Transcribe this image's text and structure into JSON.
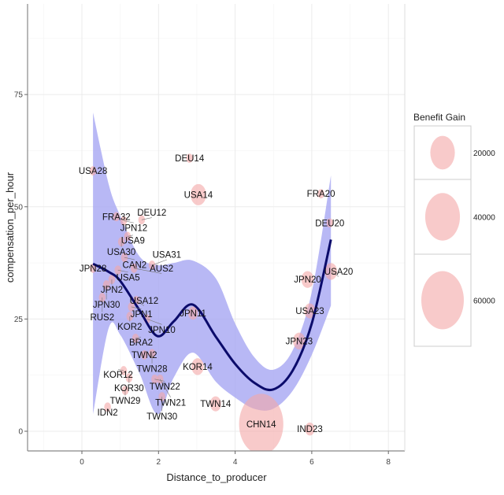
{
  "chart_data": {
    "type": "scatter",
    "xlabel": "Distance_to_producer",
    "ylabel": "compensation_per_hour",
    "xlim": [
      -1.4,
      8.4
    ],
    "ylim": [
      -4.5,
      95
    ],
    "xticks": [
      0,
      2,
      4,
      6,
      8
    ],
    "yticks": [
      0,
      25,
      50,
      75
    ],
    "grid": true,
    "legend": {
      "title": "Benefit Gain",
      "position": "right",
      "entries": [
        {
          "label": "20000",
          "value": 20000
        },
        {
          "label": "40000",
          "value": 40000
        },
        {
          "label": "60000",
          "value": 60000
        }
      ]
    },
    "colors": {
      "bubble": "#f4a6a6",
      "band": "#a6a6f2",
      "line": "#0b0b6b"
    },
    "points": [
      {
        "label": "USA28",
        "x": 0.29,
        "y": 58.0,
        "gain": 1500
      },
      {
        "label": "DEU14",
        "x": 2.81,
        "y": 60.8,
        "gain": 1500
      },
      {
        "label": "USA14",
        "x": 3.04,
        "y": 52.7,
        "gain": 8000
      },
      {
        "label": "FRA20",
        "x": 6.24,
        "y": 52.9,
        "gain": 1500
      },
      {
        "label": "DEU20",
        "x": 6.47,
        "y": 46.4,
        "gain": 1500
      },
      {
        "label": "FRA32",
        "x": 0.9,
        "y": 47.8,
        "gain": 1500
      },
      {
        "label": "JPN12",
        "x": 1.09,
        "y": 46.9,
        "gain": 1500
      },
      {
        "label": "DEU12",
        "x": 1.56,
        "y": 47.1,
        "gain": 1500
      },
      {
        "label": "USA9",
        "x": 1.19,
        "y": 43.4,
        "gain": 1500
      },
      {
        "label": "USA30",
        "x": 1.03,
        "y": 42.2,
        "gain": 1500
      },
      {
        "label": "CAN2",
        "x": 1.11,
        "y": 38.7,
        "gain": 1500
      },
      {
        "label": "JPN28",
        "x": 0.29,
        "y": 36.3,
        "gain": 1500
      },
      {
        "label": "USA5",
        "x": 0.94,
        "y": 35.9,
        "gain": 1500
      },
      {
        "label": "AUS2",
        "x": 1.36,
        "y": 36.3,
        "gain": 1500
      },
      {
        "label": "USA31",
        "x": 1.83,
        "y": 37.0,
        "gain": 1500
      },
      {
        "label": "JPN2",
        "x": 0.78,
        "y": 33.8,
        "gain": 1500
      },
      {
        "label": "JPN30",
        "x": 0.64,
        "y": 32.6,
        "gain": 1500
      },
      {
        "label": "RUS2",
        "x": 0.53,
        "y": 29.8,
        "gain": 1500
      },
      {
        "label": "USA12",
        "x": 1.42,
        "y": 29.1,
        "gain": 1500
      },
      {
        "label": "JPN1",
        "x": 1.29,
        "y": 27.7,
        "gain": 1500
      },
      {
        "label": "KOR2",
        "x": 1.25,
        "y": 25.6,
        "gain": 1500
      },
      {
        "label": "JPN10",
        "x": 1.7,
        "y": 25.0,
        "gain": 1500
      },
      {
        "label": "JPN11",
        "x": 2.9,
        "y": 26.3,
        "gain": 3000
      },
      {
        "label": "BRA2",
        "x": 1.4,
        "y": 20.7,
        "gain": 1500
      },
      {
        "label": "TWN2",
        "x": 1.63,
        "y": 17.0,
        "gain": 1500
      },
      {
        "label": "TWN28",
        "x": 1.83,
        "y": 17.3,
        "gain": 1500
      },
      {
        "label": "KOR14",
        "x": 3.02,
        "y": 14.4,
        "gain": 5000
      },
      {
        "label": "KOR12",
        "x": 1.09,
        "y": 13.5,
        "gain": 1500
      },
      {
        "label": "KOR30",
        "x": 1.23,
        "y": 11.9,
        "gain": 1500
      },
      {
        "label": "TWN22",
        "x": 1.9,
        "y": 11.6,
        "gain": 1500
      },
      {
        "label": "TWN21",
        "x": 2.04,
        "y": 11.6,
        "gain": 1500
      },
      {
        "label": "TWN29",
        "x": 1.13,
        "y": 9.1,
        "gain": 1500
      },
      {
        "label": "TWN30",
        "x": 2.09,
        "y": 7.7,
        "gain": 1500
      },
      {
        "label": "IDN2",
        "x": 0.67,
        "y": 5.4,
        "gain": 1500
      },
      {
        "label": "TWN14",
        "x": 3.49,
        "y": 6.1,
        "gain": 4000
      },
      {
        "label": "CHN14",
        "x": 4.68,
        "y": 1.6,
        "gain": 65000
      },
      {
        "label": "IND23",
        "x": 5.95,
        "y": 0.5,
        "gain": 3000
      },
      {
        "label": "JPN20",
        "x": 5.89,
        "y": 33.8,
        "gain": 5000
      },
      {
        "label": "USA20",
        "x": 6.5,
        "y": 35.6,
        "gain": 5000
      },
      {
        "label": "USA23",
        "x": 5.95,
        "y": 26.8,
        "gain": 4000
      },
      {
        "label": "JPN23",
        "x": 5.67,
        "y": 20.1,
        "gain": 5000
      }
    ],
    "smooth": {
      "x": [
        0.29,
        0.7,
        1.0,
        1.5,
        1.97,
        2.4,
        2.9,
        3.5,
        4.0,
        4.5,
        4.99,
        5.5,
        6.0,
        6.5
      ],
      "y": [
        37.3,
        35.5,
        33.5,
        27.0,
        21.2,
        24.5,
        28.2,
        21.0,
        15.0,
        10.8,
        9.3,
        13.5,
        24.0,
        42.7
      ],
      "upper": [
        71.0,
        55.0,
        48.0,
        39.0,
        37.0,
        37.5,
        38.0,
        34.0,
        24.0,
        16.5,
        13.7,
        18.0,
        31.0,
        57.0
      ],
      "lower": [
        3.8,
        23.0,
        21.5,
        13.0,
        3.8,
        12.0,
        17.5,
        11.0,
        7.5,
        5.0,
        5.0,
        9.0,
        17.0,
        28.0
      ]
    }
  }
}
